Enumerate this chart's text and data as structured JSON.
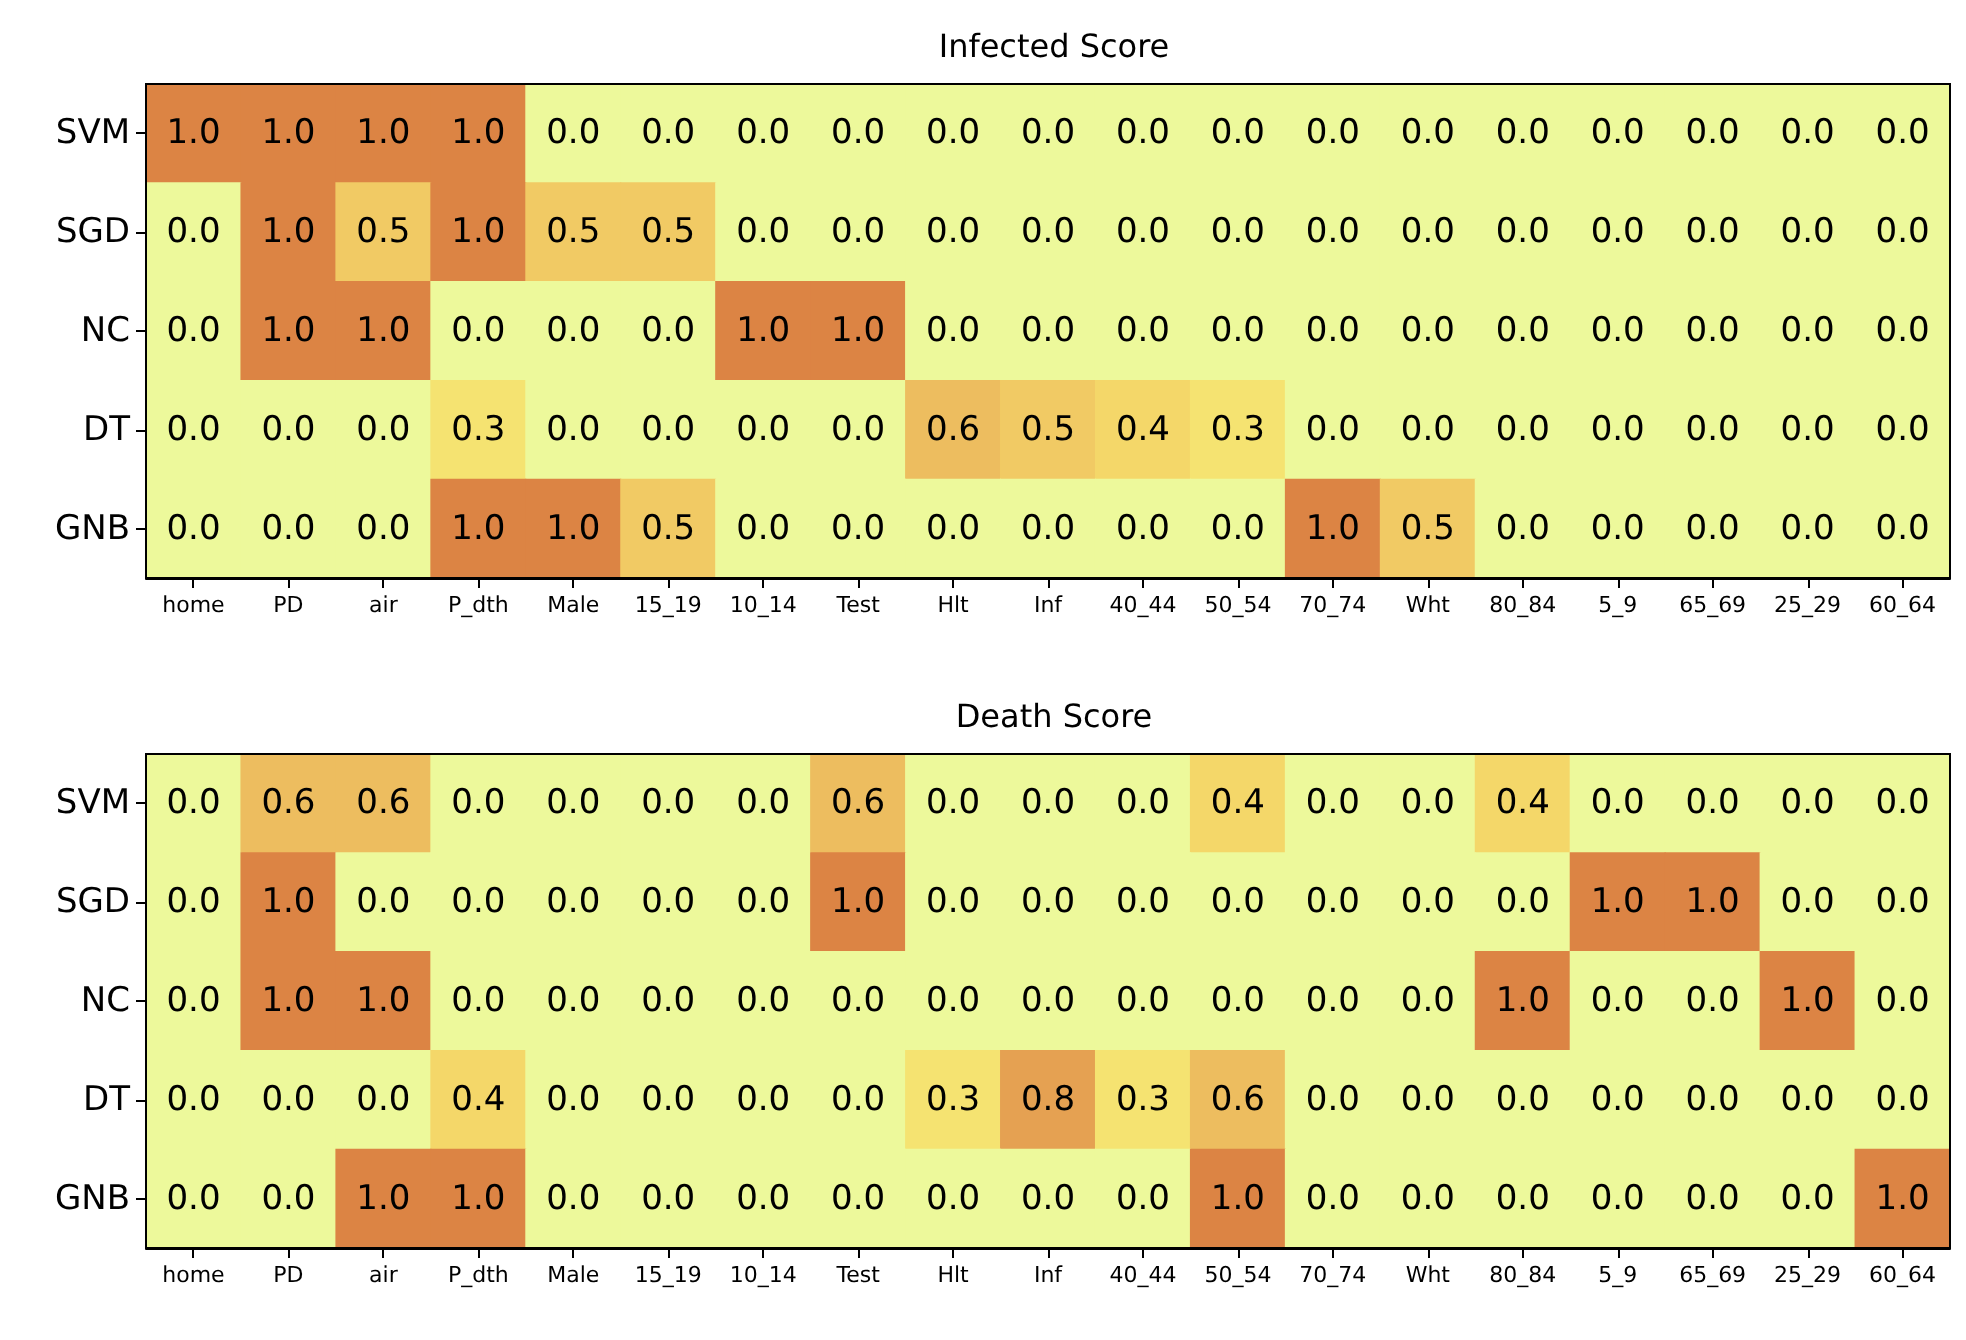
{
  "chart_data": [
    {
      "type": "heatmap",
      "title": "Infected Score",
      "categories": [
        "home",
        "PD",
        "air",
        "P_dth",
        "Male",
        "15_19",
        "10_14",
        "Test",
        "Hlt",
        "Inf",
        "40_44",
        "50_54",
        "70_74",
        "Wht",
        "80_84",
        "5_9",
        "65_69",
        "25_29",
        "60_64"
      ],
      "y_categories": [
        "SVM",
        "SGD",
        "NC",
        "DT",
        "GNB"
      ],
      "cells": [
        [
          1,
          1,
          1,
          1,
          0,
          0,
          0,
          0,
          0,
          0,
          0,
          0,
          0,
          0,
          0,
          0,
          0,
          0,
          0
        ],
        [
          0,
          1,
          0.5,
          1,
          0.5,
          0.5,
          0,
          0,
          0,
          0,
          0,
          0,
          0,
          0,
          0,
          0,
          0,
          0,
          0
        ],
        [
          0,
          1,
          1,
          0,
          0,
          0,
          1,
          1,
          0,
          0,
          0,
          0,
          0,
          0,
          0,
          0,
          0,
          0,
          0
        ],
        [
          0,
          0,
          0,
          0.3,
          0,
          0,
          0,
          0,
          0.6,
          0.5,
          0.4,
          0.3,
          0,
          0,
          0,
          0,
          0,
          0,
          0
        ],
        [
          0,
          0,
          0,
          1,
          1,
          0.5,
          0,
          0,
          0,
          0,
          0,
          0,
          1,
          0.5,
          0,
          0,
          0,
          0,
          0
        ]
      ],
      "cell_labels": [
        [
          "1.0",
          "1.0",
          "1.0",
          "1.0",
          "0.0",
          "0.0",
          "0.0",
          "0.0",
          "0.0",
          "0.0",
          "0.0",
          "0.0",
          "0.0",
          "0.0",
          "0.0",
          "0.0",
          "0.0",
          "0.0",
          "0.0"
        ],
        [
          "0.0",
          "1.0",
          "0.5",
          "1.0",
          "0.5",
          "0.5",
          "0.0",
          "0.0",
          "0.0",
          "0.0",
          "0.0",
          "0.0",
          "0.0",
          "0.0",
          "0.0",
          "0.0",
          "0.0",
          "0.0",
          "0.0"
        ],
        [
          "0.0",
          "1.0",
          "1.0",
          "0.0",
          "0.0",
          "0.0",
          "1.0",
          "1.0",
          "0.0",
          "0.0",
          "0.0",
          "0.0",
          "0.0",
          "0.0",
          "0.0",
          "0.0",
          "0.0",
          "0.0",
          "0.0"
        ],
        [
          "0.0",
          "0.0",
          "0.0",
          "0.3",
          "0.0",
          "0.0",
          "0.0",
          "0.0",
          "0.6",
          "0.5",
          "0.4",
          "0.3",
          "0.0",
          "0.0",
          "0.0",
          "0.0",
          "0.0",
          "0.0",
          "0.0"
        ],
        [
          "0.0",
          "0.0",
          "0.0",
          "1.0",
          "1.0",
          "0.5",
          "0.0",
          "0.0",
          "0.0",
          "0.0",
          "0.0",
          "0.0",
          "1.0",
          "0.5",
          "0.0",
          "0.0",
          "0.0",
          "0.0",
          "0.0"
        ]
      ]
    },
    {
      "type": "heatmap",
      "title": "Death Score",
      "categories": [
        "home",
        "PD",
        "air",
        "P_dth",
        "Male",
        "15_19",
        "10_14",
        "Test",
        "Hlt",
        "Inf",
        "40_44",
        "50_54",
        "70_74",
        "Wht",
        "80_84",
        "5_9",
        "65_69",
        "25_29",
        "60_64"
      ],
      "y_categories": [
        "SVM",
        "SGD",
        "NC",
        "DT",
        "GNB"
      ],
      "cells": [
        [
          0,
          0.6,
          0.6,
          0,
          0,
          0,
          0,
          0.6,
          0,
          0,
          0,
          0.4,
          0,
          0,
          0.4,
          0,
          0,
          0,
          0
        ],
        [
          0,
          1,
          0,
          0,
          0,
          0,
          0,
          1,
          0,
          0,
          0,
          0,
          0,
          0,
          0,
          1,
          1,
          0,
          0
        ],
        [
          0,
          1,
          1,
          0,
          0,
          0,
          0,
          0,
          0,
          0,
          0,
          0,
          0,
          0,
          1,
          0,
          0,
          1,
          0
        ],
        [
          0,
          0,
          0,
          0.4,
          0,
          0,
          0,
          0,
          0.3,
          0.8,
          0.3,
          0.6,
          0,
          0,
          0,
          0,
          0,
          0,
          0
        ],
        [
          0,
          0,
          1,
          1,
          0,
          0,
          0,
          0,
          0,
          0,
          0,
          1,
          0,
          0,
          0,
          0,
          0,
          0,
          1
        ]
      ],
      "cell_labels": [
        [
          "0.0",
          "0.6",
          "0.6",
          "0.0",
          "0.0",
          "0.0",
          "0.0",
          "0.6",
          "0.0",
          "0.0",
          "0.0",
          "0.4",
          "0.0",
          "0.0",
          "0.4",
          "0.0",
          "0.0",
          "0.0",
          "0.0"
        ],
        [
          "0.0",
          "1.0",
          "0.0",
          "0.0",
          "0.0",
          "0.0",
          "0.0",
          "1.0",
          "0.0",
          "0.0",
          "0.0",
          "0.0",
          "0.0",
          "0.0",
          "0.0",
          "1.0",
          "1.0",
          "0.0",
          "0.0"
        ],
        [
          "0.0",
          "1.0",
          "1.0",
          "0.0",
          "0.0",
          "0.0",
          "0.0",
          "0.0",
          "0.0",
          "0.0",
          "0.0",
          "0.0",
          "0.0",
          "0.0",
          "1.0",
          "0.0",
          "0.0",
          "1.0",
          "0.0"
        ],
        [
          "0.0",
          "0.0",
          "0.0",
          "0.4",
          "0.0",
          "0.0",
          "0.0",
          "0.0",
          "0.3",
          "0.8",
          "0.3",
          "0.6",
          "0.0",
          "0.0",
          "0.0",
          "0.0",
          "0.0",
          "0.0",
          "0.0"
        ],
        [
          "0.0",
          "0.0",
          "1.0",
          "1.0",
          "0.0",
          "0.0",
          "0.0",
          "0.0",
          "0.0",
          "0.0",
          "0.0",
          "1.0",
          "0.0",
          "0.0",
          "0.0",
          "0.0",
          "0.0",
          "0.0",
          "1.0"
        ]
      ]
    }
  ]
}
